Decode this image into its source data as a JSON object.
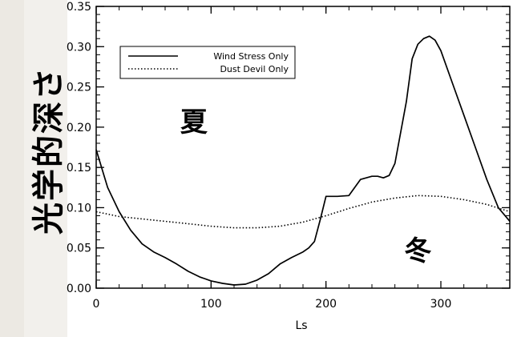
{
  "chart_data": {
    "type": "line",
    "title": "",
    "xlabel": "Ls",
    "ylabel": "光学的深さ",
    "xlim": [
      0,
      360
    ],
    "ylim": [
      0.0,
      0.35
    ],
    "xticks": [
      0,
      100,
      200,
      300
    ],
    "xtick_labels": [
      "0",
      "100",
      "200",
      "300"
    ],
    "yticks": [
      0.0,
      0.05,
      0.1,
      0.15,
      0.2,
      0.25,
      0.3,
      0.35
    ],
    "ytick_labels": [
      "0.00",
      "0.05",
      "0.10",
      "0.15",
      "0.20",
      "0.25",
      "0.30",
      "0.35"
    ],
    "legend_position": "top-left",
    "annotations": [
      {
        "text": "夏",
        "x": 85,
        "y": 0.195
      },
      {
        "text": "冬",
        "x": 280,
        "y": 0.035
      }
    ],
    "series": [
      {
        "name": "Wind Stress Only",
        "style": "solid",
        "x": [
          0,
          10,
          20,
          30,
          40,
          50,
          60,
          70,
          80,
          90,
          100,
          110,
          120,
          130,
          140,
          150,
          160,
          170,
          180,
          185,
          190,
          195,
          200,
          210,
          220,
          230,
          240,
          245,
          250,
          255,
          260,
          270,
          275,
          280,
          285,
          290,
          295,
          300,
          310,
          320,
          330,
          340,
          350,
          360
        ],
        "y": [
          0.172,
          0.125,
          0.095,
          0.072,
          0.055,
          0.045,
          0.038,
          0.03,
          0.021,
          0.014,
          0.009,
          0.006,
          0.004,
          0.005,
          0.01,
          0.018,
          0.03,
          0.038,
          0.045,
          0.05,
          0.058,
          0.085,
          0.114,
          0.114,
          0.115,
          0.135,
          0.139,
          0.139,
          0.137,
          0.14,
          0.155,
          0.232,
          0.285,
          0.303,
          0.31,
          0.313,
          0.308,
          0.295,
          0.255,
          0.215,
          0.175,
          0.135,
          0.1,
          0.083
        ]
      },
      {
        "name": "Dust Devil Only",
        "style": "dotted",
        "x": [
          0,
          20,
          40,
          60,
          80,
          100,
          120,
          140,
          160,
          180,
          200,
          220,
          240,
          260,
          280,
          300,
          320,
          340,
          360
        ],
        "y": [
          0.095,
          0.089,
          0.086,
          0.083,
          0.08,
          0.077,
          0.075,
          0.075,
          0.077,
          0.082,
          0.09,
          0.099,
          0.107,
          0.112,
          0.115,
          0.114,
          0.11,
          0.104,
          0.095
        ]
      }
    ]
  }
}
